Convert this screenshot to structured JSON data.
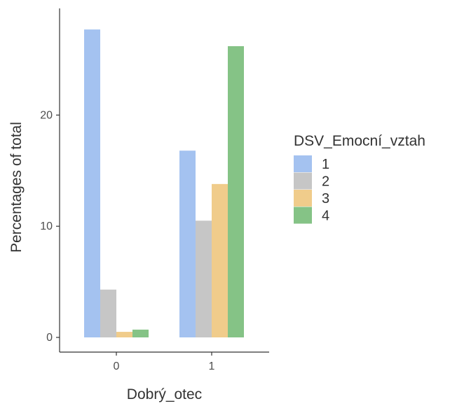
{
  "chart_data": {
    "type": "bar",
    "xlabel": "Dobrý_otec",
    "ylabel": "Percentages of total",
    "categories": [
      "0",
      "1"
    ],
    "ylim": [
      0,
      28.4
    ],
    "yticks": [
      0,
      10,
      20
    ],
    "legend": {
      "title": "DSV_Emocní_vztah",
      "placement": "right"
    },
    "grid": false,
    "series": [
      {
        "name": "1",
        "color": "#a4c2f0",
        "values": [
          27.7,
          16.8
        ]
      },
      {
        "name": "2",
        "color": "#c6c6c6",
        "values": [
          4.3,
          10.5
        ]
      },
      {
        "name": "3",
        "color": "#f0cc8b",
        "values": [
          0.5,
          13.8
        ]
      },
      {
        "name": "4",
        "color": "#85c386",
        "values": [
          0.7,
          26.2
        ]
      }
    ]
  }
}
